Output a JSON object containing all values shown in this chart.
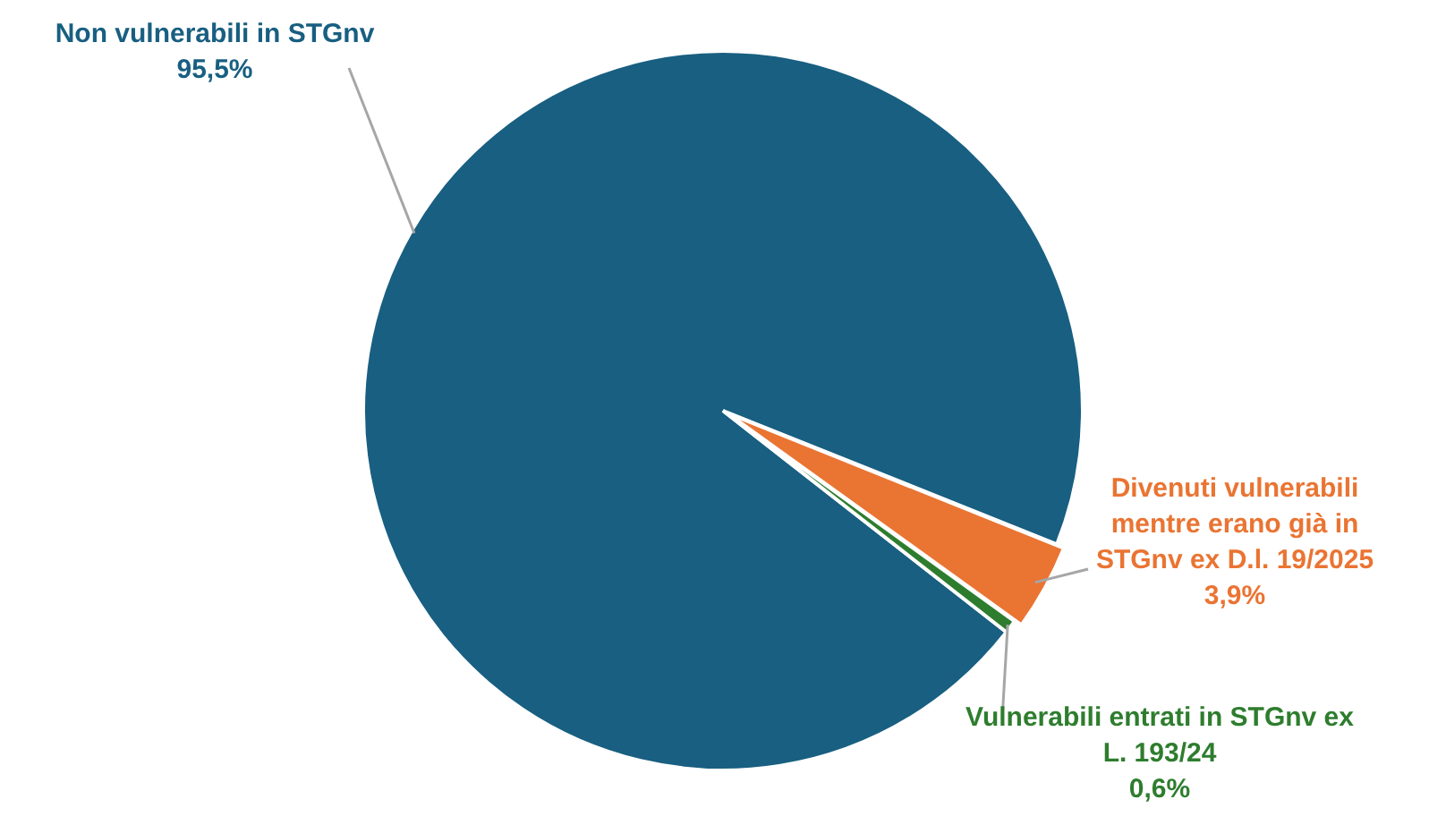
{
  "chart_data": {
    "type": "pie",
    "categories": [
      "Non vulnerabili in STGnv",
      "Divenuti vulnerabili mentre erano già in STGnv ex D.l. 19/2025",
      "Vulnerabili entrati in STGnv ex L. 193/24"
    ],
    "values": [
      95.5,
      3.9,
      0.6
    ],
    "value_labels": [
      "95,5%",
      "3,9%",
      "0,6%"
    ],
    "colors": [
      "#185f81",
      "#ea7432",
      "#2e7d2e"
    ],
    "legend": false
  }
}
